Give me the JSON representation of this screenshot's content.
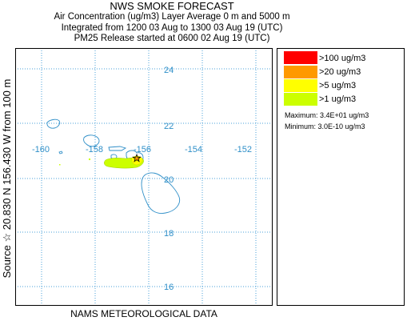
{
  "header": {
    "title": "NWS SMOKE FORECAST",
    "line2": "Air Concentration (ug/m3) Layer Average    0 m and  5000 m",
    "line3": "Integrated from 1200 03 Aug to 1300 03 Aug 19 (UTC)",
    "line4": "PM25 Release started at 0600 02 Aug 19 (UTC)"
  },
  "map": {
    "y_axis_label": "Source ☆  20.830  N  156.430  W   from  100 m",
    "footer": "NAMS METEOROLOGICAL DATA",
    "lon_labels": [
      "-160",
      "-158",
      "-156",
      "-154",
      "-152"
    ],
    "lat_labels": [
      "24",
      "22",
      "20",
      "18",
      "16"
    ],
    "grid_color": "#4aa0d8",
    "coast_color": "#2f8fc8"
  },
  "legend": {
    "entries": [
      {
        "label": ">100 ug/m3",
        "color": "#ff0000"
      },
      {
        "label": ">20 ug/m3",
        "color": "#ff9900"
      },
      {
        "label": ">5 ug/m3",
        "color": "#ffff00"
      },
      {
        "label": ">1 ug/m3",
        "color": "#ccff00"
      }
    ],
    "maximum": "Maximum: 3.4E+01 ug/m3",
    "minimum": "Minimum: 3.0E-10 ug/m3"
  }
}
